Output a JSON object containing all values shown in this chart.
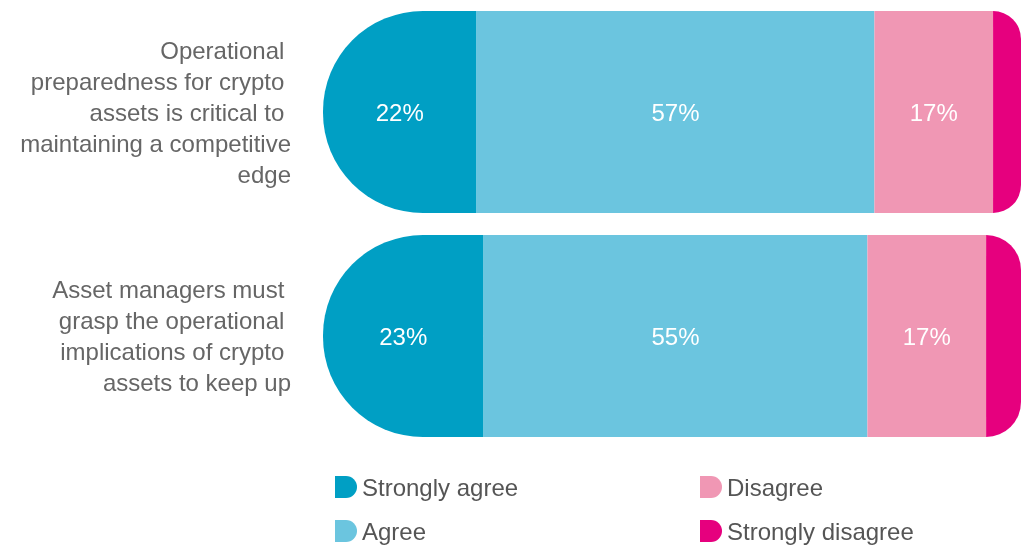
{
  "chart_data": {
    "type": "bar",
    "orientation": "horizontal",
    "stacked": true,
    "legend": "bottom",
    "categories": [
      "Operational preparedness for crypto assets is critical to maintaining a competitive edge",
      "Asset managers must grasp the operational implications of crypto assets to keep up"
    ],
    "series": [
      {
        "name": "Strongly agree",
        "color": "#009fc4",
        "values": [
          22,
          23
        ],
        "value_labels": [
          "22%",
          "23%"
        ]
      },
      {
        "name": "Agree",
        "color": "#6bc5df",
        "values": [
          57,
          55
        ],
        "value_labels": [
          "57%",
          "55%"
        ]
      },
      {
        "name": "Disagree",
        "color": "#f097b4",
        "values": [
          17,
          17
        ],
        "value_labels": [
          "17%",
          "17%"
        ]
      },
      {
        "name": "Strongly disagree",
        "color": "#e6007e",
        "values": [
          4,
          5
        ],
        "value_labels": [
          null,
          null
        ]
      }
    ]
  }
}
